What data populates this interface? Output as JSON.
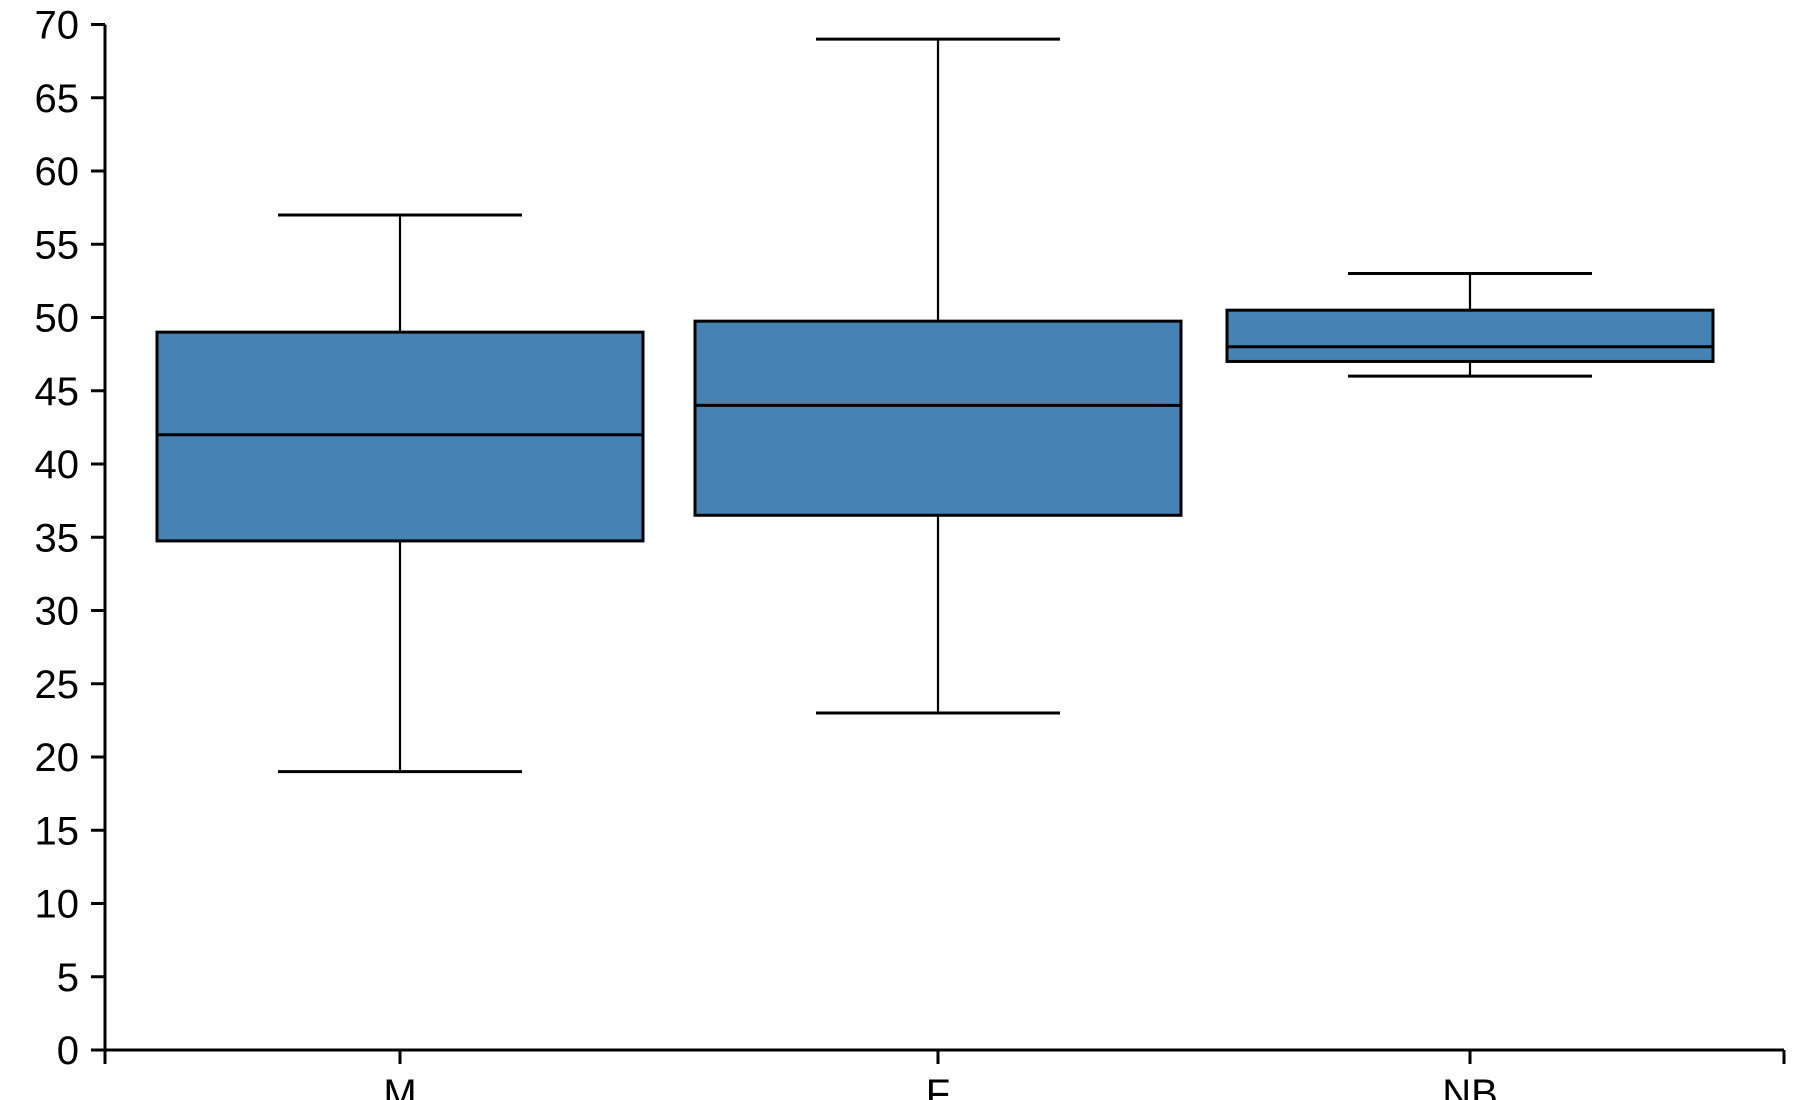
{
  "chart_data": {
    "type": "boxplot",
    "title": "",
    "xlabel": "",
    "ylabel": "",
    "categories": [
      "M",
      "F",
      "NB"
    ],
    "series": [
      {
        "name": "M",
        "whisker_low": 19,
        "q1": 34.75,
        "median": 42,
        "q3": 49,
        "whisker_high": 57
      },
      {
        "name": "F",
        "whisker_low": 23,
        "q1": 36.5,
        "median": 44,
        "q3": 49.75,
        "whisker_high": 69
      },
      {
        "name": "NB",
        "whisker_low": 46,
        "q1": 47,
        "median": 48,
        "q3": 50.5,
        "whisker_high": 53
      }
    ],
    "ylim": [
      0,
      70
    ],
    "ytick_step": 5,
    "ytick_labels": [
      "0",
      "5",
      "10",
      "15",
      "20",
      "25",
      "30",
      "35",
      "40",
      "45",
      "50",
      "55",
      "60",
      "65",
      "70"
    ],
    "grid": false,
    "legend": null,
    "layout_hints": {
      "legend_position": "none",
      "orientation": "vertical",
      "whisker_caps": true
    },
    "colors": {
      "box_fill": "#4682b4",
      "line": "#000000",
      "text": "#000000",
      "background": "#ffffff"
    }
  }
}
